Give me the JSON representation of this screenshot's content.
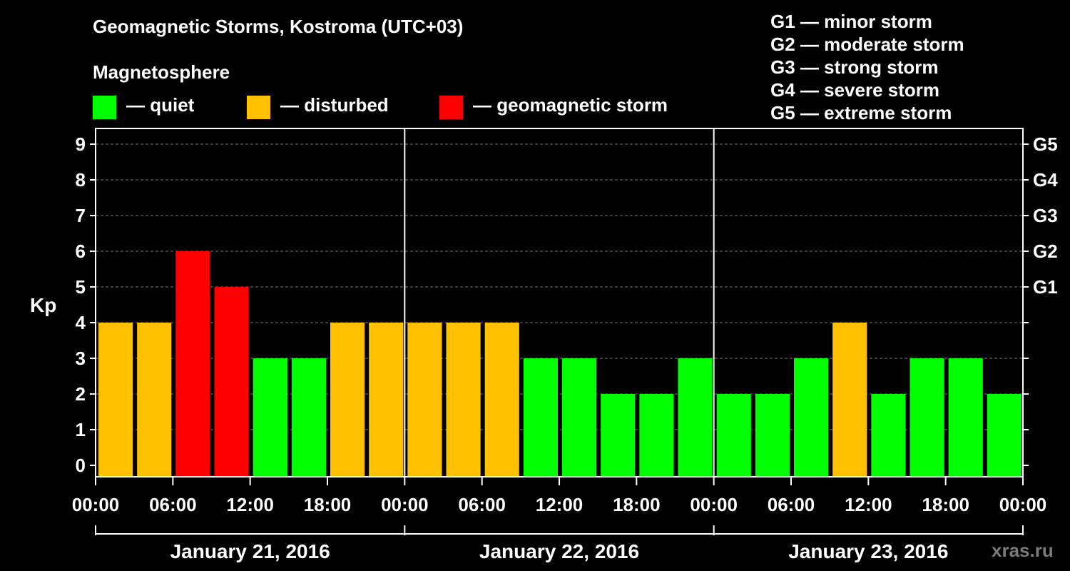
{
  "header": {
    "title": "Geomagnetic Storms, Kostroma (UTC+03)",
    "subtitle": "Magnetosphere",
    "watermark": "xras.ru"
  },
  "legend": [
    {
      "label": "— quiet",
      "color": "#00ff00"
    },
    {
      "label": "— disturbed",
      "color": "#ffc000"
    },
    {
      "label": "— geomagnetic storm",
      "color": "#ff0000"
    }
  ],
  "storm_levels": [
    "G1 — minor storm",
    "G2 — moderate storm",
    "G3 — strong storm",
    "G4 — severe storm",
    "G5 — extreme storm"
  ],
  "chart_data": {
    "type": "bar",
    "title": "Geomagnetic Storms, Kostroma (UTC+03)",
    "ylabel": "Kp",
    "ylim": [
      0,
      9
    ],
    "yticks": [
      "0",
      "1",
      "2",
      "3",
      "4",
      "5",
      "6",
      "7",
      "8",
      "9"
    ],
    "right_axis": [
      {
        "kp": 5,
        "label": "G1"
      },
      {
        "kp": 6,
        "label": "G2"
      },
      {
        "kp": 7,
        "label": "G3"
      },
      {
        "kp": 8,
        "label": "G4"
      },
      {
        "kp": 9,
        "label": "G5"
      }
    ],
    "xtick_labels": [
      "00:00",
      "06:00",
      "12:00",
      "18:00",
      "00:00",
      "06:00",
      "12:00",
      "18:00",
      "00:00",
      "06:00",
      "12:00",
      "18:00",
      "00:00"
    ],
    "days": [
      "January 21, 2016",
      "January 22, 2016",
      "January 23, 2016"
    ],
    "grid": true,
    "values": [
      4,
      4,
      6,
      5,
      3,
      3,
      4,
      4,
      4,
      4,
      4,
      3,
      3,
      2,
      2,
      3,
      2,
      2,
      3,
      4,
      2,
      3,
      3,
      2
    ],
    "colors": [
      "#ffc000",
      "#ffc000",
      "#ff0000",
      "#ff0000",
      "#00ff00",
      "#00ff00",
      "#ffc000",
      "#ffc000",
      "#ffc000",
      "#ffc000",
      "#ffc000",
      "#00ff00",
      "#00ff00",
      "#00ff00",
      "#00ff00",
      "#00ff00",
      "#00ff00",
      "#00ff00",
      "#00ff00",
      "#ffc000",
      "#00ff00",
      "#00ff00",
      "#00ff00",
      "#00ff00"
    ]
  }
}
